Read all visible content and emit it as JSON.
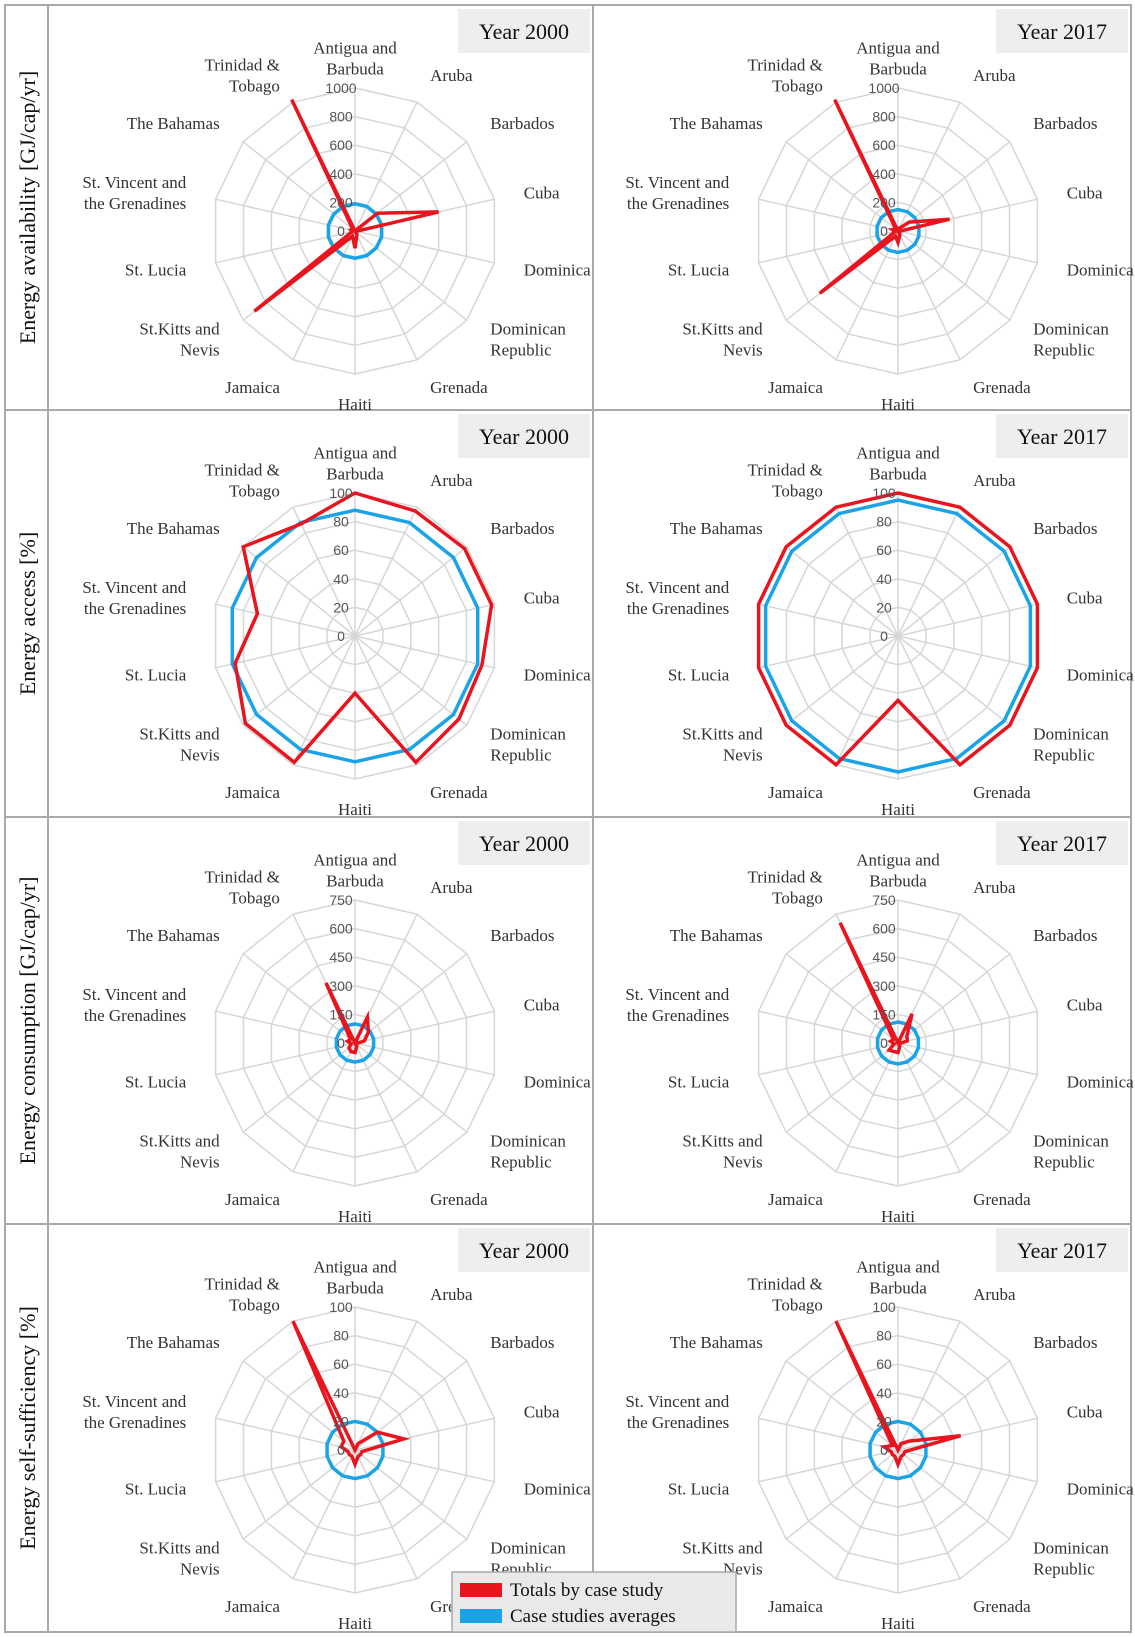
{
  "categories": [
    "Antigua and Barbuda",
    "Aruba",
    "Barbados",
    "Cuba",
    "Dominica",
    "Dominican Republic",
    "Grenada",
    "Haiti",
    "Jamaica",
    "St.Kitts and Nevis",
    "St. Lucia",
    "St. Vincent and the Grenadines",
    "The Bahamas",
    "Trinidad & Tobago"
  ],
  "legend": [
    {
      "name": "Totals by case study",
      "color": "#e8141e"
    },
    {
      "name": "Case studies averages",
      "color": "#1aa3e6"
    }
  ],
  "colors": {
    "totals": "#e8141e",
    "averages": "#1aa3e6",
    "grid": "#d6d6d6",
    "border": "#a9a9a9",
    "title_bg": "#eeeeee"
  },
  "chart_data": [
    {
      "type": "radar",
      "row_label": "Energy availability [GJ/cap/yr]",
      "title": "Year 2000",
      "ticks": [
        "0",
        "200",
        "400",
        "600",
        "800",
        "1000"
      ],
      "rmax": 1000,
      "clip": true,
      "series": [
        {
          "name": "Totals by case study",
          "values": [
            0,
            0,
            200,
            600,
            10,
            10,
            30,
            120,
            40,
            900,
            20,
            30,
            20,
            1100
          ]
        },
        {
          "name": "Case studies averages",
          "values": [
            190,
            190,
            190,
            190,
            190,
            190,
            190,
            190,
            190,
            190,
            190,
            190,
            190,
            190
          ]
        }
      ]
    },
    {
      "type": "radar",
      "row_label": "Energy availability [GJ/cap/yr]",
      "title": "Year 2017",
      "ticks": [
        "0",
        "200",
        "400",
        "600",
        "800",
        "1000"
      ],
      "rmax": 1000,
      "clip": true,
      "series": [
        {
          "name": "Totals by case study",
          "values": [
            0,
            20,
            100,
            370,
            10,
            10,
            30,
            80,
            40,
            700,
            20,
            40,
            20,
            1100
          ]
        },
        {
          "name": "Case studies averages",
          "values": [
            150,
            150,
            150,
            150,
            150,
            150,
            150,
            150,
            150,
            150,
            150,
            150,
            150,
            150
          ]
        }
      ]
    },
    {
      "type": "radar",
      "row_label": "Energy access [%]",
      "title": "Year 2000",
      "ticks": [
        "0",
        "20",
        "40",
        "60",
        "80",
        "100"
      ],
      "rmax": 100,
      "series": [
        {
          "name": "Totals by case study",
          "values": [
            100,
            97,
            98,
            98,
            91,
            93,
            98,
            40,
            98,
            98,
            86,
            70,
            100,
            87
          ]
        },
        {
          "name": "Case studies averages",
          "values": [
            88,
            88,
            88,
            88,
            88,
            88,
            88,
            88,
            88,
            88,
            88,
            88,
            88,
            88
          ]
        }
      ]
    },
    {
      "type": "radar",
      "row_label": "Energy access [%]",
      "title": "Year 2017",
      "ticks": [
        "0",
        "20",
        "40",
        "60",
        "80",
        "100"
      ],
      "rmax": 100,
      "series": [
        {
          "name": "Totals by case study",
          "values": [
            100,
            100,
            100,
            100,
            100,
            100,
            100,
            45,
            100,
            100,
            100,
            100,
            100,
            100
          ]
        },
        {
          "name": "Case studies averages",
          "values": [
            95,
            95,
            95,
            95,
            95,
            95,
            95,
            95,
            95,
            95,
            95,
            95,
            95,
            95
          ]
        }
      ]
    },
    {
      "type": "radar",
      "row_label": "Energy consumption [GJ/cap/yr]",
      "title": "Year 2000",
      "ticks": [
        "0",
        "150",
        "300",
        "450",
        "600",
        "750"
      ],
      "rmax": 750,
      "series": [
        {
          "name": "Totals by case study",
          "values": [
            0,
            150,
            90,
            50,
            10,
            10,
            20,
            50,
            50,
            40,
            20,
            40,
            30,
            350
          ]
        },
        {
          "name": "Case studies averages",
          "values": [
            100,
            100,
            100,
            100,
            100,
            100,
            100,
            100,
            100,
            100,
            100,
            100,
            100,
            100
          ]
        }
      ]
    },
    {
      "type": "radar",
      "row_label": "Energy consumption [GJ/cap/yr]",
      "title": "Year 2017",
      "ticks": [
        "0",
        "150",
        "300",
        "450",
        "600",
        "750"
      ],
      "rmax": 750,
      "series": [
        {
          "name": "Totals by case study",
          "values": [
            0,
            170,
            60,
            50,
            10,
            10,
            20,
            50,
            50,
            60,
            20,
            40,
            30,
            700
          ]
        },
        {
          "name": "Case studies averages",
          "values": [
            110,
            110,
            110,
            110,
            110,
            110,
            110,
            110,
            110,
            110,
            110,
            110,
            110,
            110
          ]
        }
      ]
    },
    {
      "type": "radar",
      "row_label": "Energy self-sufficiency [%]",
      "title": "Year 2000",
      "ticks": [
        "0",
        "20",
        "40",
        "60",
        "80",
        "100"
      ],
      "rmax": 100,
      "series": [
        {
          "name": "Totals by case study",
          "values": [
            0,
            5,
            20,
            35,
            5,
            5,
            5,
            10,
            5,
            5,
            5,
            10,
            10,
            100
          ]
        },
        {
          "name": "Case studies averages",
          "values": [
            20,
            20,
            20,
            20,
            20,
            20,
            20,
            20,
            20,
            20,
            20,
            20,
            20,
            20
          ]
        }
      ]
    },
    {
      "type": "radar",
      "row_label": "Energy self-sufficiency [%]",
      "title": "Year 2017",
      "ticks": [
        "0",
        "20",
        "40",
        "60",
        "80",
        "100"
      ],
      "rmax": 100,
      "series": [
        {
          "name": "Totals by case study",
          "values": [
            0,
            5,
            10,
            45,
            5,
            5,
            5,
            10,
            5,
            5,
            5,
            10,
            5,
            100
          ]
        },
        {
          "name": "Case studies averages",
          "values": [
            20,
            20,
            20,
            20,
            20,
            20,
            20,
            20,
            20,
            20,
            20,
            20,
            20,
            20
          ]
        }
      ]
    }
  ]
}
